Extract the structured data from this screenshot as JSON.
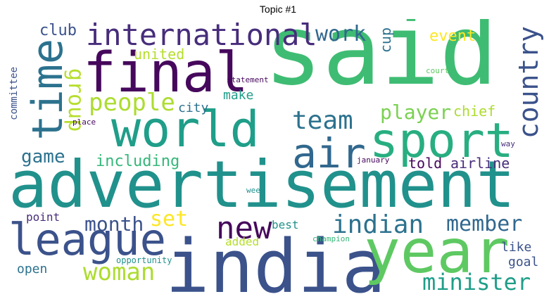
{
  "title": "Topic #1",
  "words": {
    "said": "said",
    "advertisement": "advertisement",
    "india": "india",
    "year": "year",
    "world": "world",
    "final": "final",
    "league": "league",
    "sport": "sport",
    "international": "international",
    "time": "time",
    "air": "air",
    "country": "country",
    "people": "people",
    "new": "new",
    "indian": "indian",
    "woman": "woman",
    "minister": "minister",
    "team": "team",
    "member": "member",
    "player": "player",
    "group": "group",
    "work": "work",
    "game": "game",
    "month": "month",
    "set": "set",
    "including": "including",
    "told": "told",
    "airline": "airline",
    "event": "event",
    "united": "united",
    "club": "club",
    "cup": "cup",
    "chief": "chief",
    "city": "city",
    "make": "make",
    "committee": "committee",
    "statement": "statement",
    "court": "court",
    "place": "place",
    "way": "way",
    "january": "january",
    "week": "week",
    "point": "point",
    "best": "best",
    "added": "added",
    "champion": "champion",
    "open": "open",
    "opportunity": "opportunity",
    "like": "like",
    "goal": "goal"
  },
  "colors": {
    "dark_purple": "#46085c",
    "purple": "#472d7b",
    "blue": "#3b528b",
    "teal_blue": "#2c728e",
    "teal": "#21918c",
    "green_teal": "#28ae80",
    "green": "#5ec962",
    "yellow_green": "#addc30",
    "yellow": "#fde725"
  }
}
